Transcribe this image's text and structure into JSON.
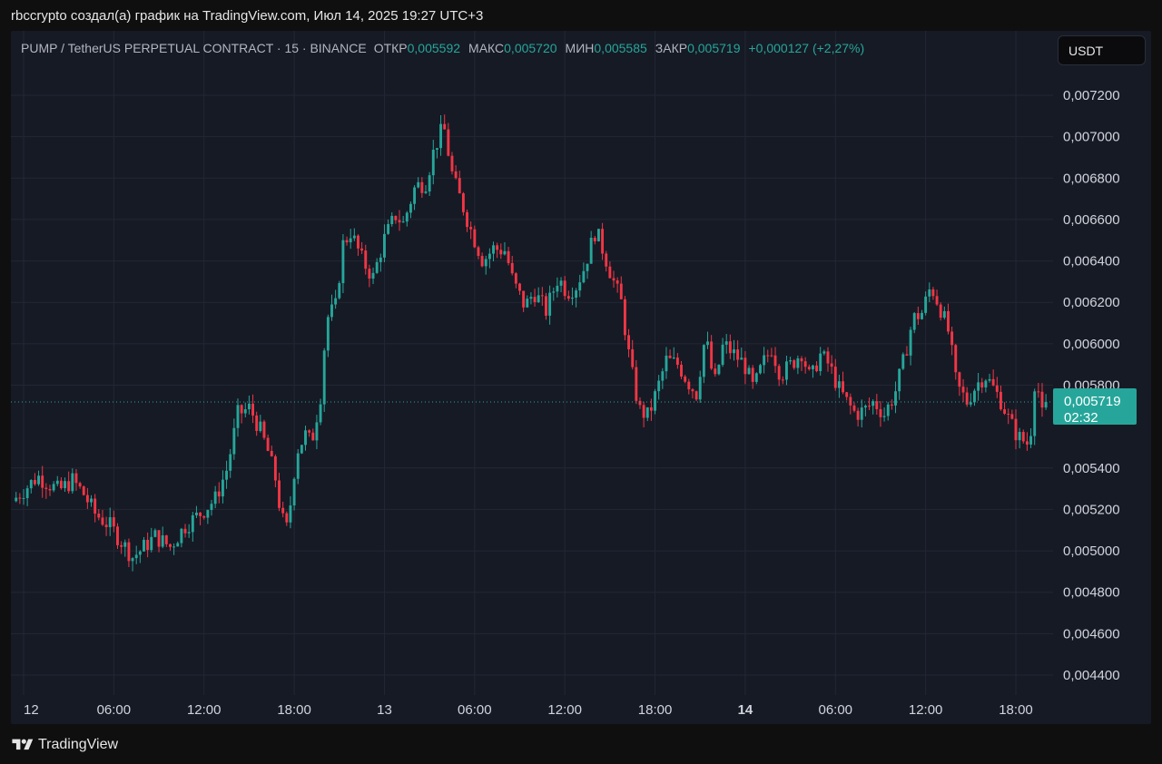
{
  "header": {
    "caption": "rbccrypto создал(а) график на TradingView.com, Июл 14, 2025 19:27 UTC+3"
  },
  "legend": {
    "symbol": "PUMP / TetherUS PERPETUAL CONTRACT · 15 · BINANCE",
    "open_label": "ОТКР",
    "open_value": "0,005592",
    "high_label": "МАКС",
    "high_value": "0,005720",
    "low_label": "МИН",
    "low_value": "0,005585",
    "close_label": "ЗАКР",
    "close_value": "0,005719",
    "change": "+0,000127 (+2,27%)"
  },
  "currency_button": {
    "label": "USDT"
  },
  "price_badge": {
    "price": "0,005719",
    "countdown": "02:32"
  },
  "footer": {
    "brand": "TradingView"
  },
  "colors": {
    "up": "#26a69a",
    "down": "#f23645",
    "background": "#161a25",
    "grid": "#232735",
    "badge": "#26a69a"
  },
  "chart_data": {
    "type": "candlestick",
    "interval": "15",
    "ylim": [
      0.0043,
      0.0073
    ],
    "y_ticks": [
      {
        "value": 0.0072,
        "label": "0,007200"
      },
      {
        "value": 0.007,
        "label": "0,007000"
      },
      {
        "value": 0.0068,
        "label": "0,006800"
      },
      {
        "value": 0.0066,
        "label": "0,006600"
      },
      {
        "value": 0.0064,
        "label": "0,006400"
      },
      {
        "value": 0.0062,
        "label": "0,006200"
      },
      {
        "value": 0.006,
        "label": "0,006000"
      },
      {
        "value": 0.0058,
        "label": "0,005800"
      },
      {
        "value": 0.0054,
        "label": "0,005400"
      },
      {
        "value": 0.0052,
        "label": "0,005200"
      },
      {
        "value": 0.005,
        "label": "0,005000"
      },
      {
        "value": 0.0048,
        "label": "0,004800"
      },
      {
        "value": 0.0046,
        "label": "0,004600"
      },
      {
        "value": 0.0044,
        "label": "0,004400"
      }
    ],
    "x_ticks": [
      {
        "hour": 0,
        "label": "12",
        "bold": false
      },
      {
        "hour": 6,
        "label": "06:00",
        "bold": false
      },
      {
        "hour": 12,
        "label": "12:00",
        "bold": false
      },
      {
        "hour": 18,
        "label": "18:00",
        "bold": false
      },
      {
        "hour": 24,
        "label": "13",
        "bold": false
      },
      {
        "hour": 30,
        "label": "06:00",
        "bold": false
      },
      {
        "hour": 36,
        "label": "12:00",
        "bold": false
      },
      {
        "hour": 42,
        "label": "18:00",
        "bold": false
      },
      {
        "hour": 48,
        "label": "14",
        "bold": true
      },
      {
        "hour": 54,
        "label": "06:00",
        "bold": false
      },
      {
        "hour": 60,
        "label": "12:00",
        "bold": false
      },
      {
        "hour": 66,
        "label": "18:00",
        "bold": false
      }
    ],
    "x_range_hours": [
      -0.5,
      69.3
    ],
    "last_price": 0.005719,
    "path_points": [
      [
        -0.5,
        0.00524
      ],
      [
        0.5,
        0.00531
      ],
      [
        1.2,
        0.00536
      ],
      [
        2.0,
        0.00532
      ],
      [
        2.6,
        0.00529
      ],
      [
        3.5,
        0.00534
      ],
      [
        4.2,
        0.00528
      ],
      [
        5.0,
        0.00518
      ],
      [
        6.0,
        0.00512
      ],
      [
        7.0,
        0.00502
      ],
      [
        7.5,
        0.00497
      ],
      [
        8.0,
        0.005
      ],
      [
        9.0,
        0.00507
      ],
      [
        10.0,
        0.00502
      ],
      [
        11.0,
        0.00512
      ],
      [
        12.0,
        0.00518
      ],
      [
        13.0,
        0.00525
      ],
      [
        13.8,
        0.0054
      ],
      [
        14.5,
        0.00566
      ],
      [
        15.3,
        0.00569
      ],
      [
        16.0,
        0.00558
      ],
      [
        16.5,
        0.00548
      ],
      [
        17.0,
        0.00535
      ],
      [
        17.4,
        0.00516
      ],
      [
        17.8,
        0.0051
      ],
      [
        18.4,
        0.00548
      ],
      [
        19.0,
        0.00556
      ],
      [
        19.4,
        0.00552
      ],
      [
        20.0,
        0.00575
      ],
      [
        20.4,
        0.00612
      ],
      [
        21.0,
        0.00618
      ],
      [
        21.5,
        0.00648
      ],
      [
        22.0,
        0.00654
      ],
      [
        22.8,
        0.0064
      ],
      [
        23.5,
        0.00632
      ],
      [
        24.2,
        0.0065
      ],
      [
        25.0,
        0.00662
      ],
      [
        25.5,
        0.00658
      ],
      [
        26.3,
        0.00676
      ],
      [
        27.0,
        0.00678
      ],
      [
        27.6,
        0.00695
      ],
      [
        28.2,
        0.00705
      ],
      [
        28.8,
        0.0068
      ],
      [
        29.4,
        0.00668
      ],
      [
        30.0,
        0.00655
      ],
      [
        30.8,
        0.0064
      ],
      [
        31.5,
        0.00646
      ],
      [
        32.3,
        0.00645
      ],
      [
        32.8,
        0.0063
      ],
      [
        33.6,
        0.00618
      ],
      [
        34.2,
        0.00625
      ],
      [
        35.0,
        0.00616
      ],
      [
        35.8,
        0.00632
      ],
      [
        36.4,
        0.00625
      ],
      [
        37.0,
        0.00628
      ],
      [
        37.5,
        0.00636
      ],
      [
        38.3,
        0.00655
      ],
      [
        38.8,
        0.00645
      ],
      [
        39.5,
        0.0063
      ],
      [
        40.0,
        0.0062
      ],
      [
        40.6,
        0.0059
      ],
      [
        41.2,
        0.00568
      ],
      [
        41.8,
        0.00565
      ],
      [
        42.4,
        0.00578
      ],
      [
        43.0,
        0.00592
      ],
      [
        43.8,
        0.0059
      ],
      [
        44.4,
        0.00582
      ],
      [
        45.0,
        0.00576
      ],
      [
        45.6,
        0.00604
      ],
      [
        46.2,
        0.0058
      ],
      [
        46.8,
        0.006
      ],
      [
        47.5,
        0.00595
      ],
      [
        48.2,
        0.0059
      ],
      [
        48.8,
        0.00578
      ],
      [
        49.4,
        0.0059
      ],
      [
        50.0,
        0.00598
      ],
      [
        50.6,
        0.00585
      ],
      [
        51.3,
        0.0059
      ],
      [
        52.0,
        0.00596
      ],
      [
        52.6,
        0.00582
      ],
      [
        53.2,
        0.00595
      ],
      [
        53.8,
        0.0059
      ],
      [
        54.5,
        0.00578
      ],
      [
        55.0,
        0.00572
      ],
      [
        55.6,
        0.00566
      ],
      [
        56.2,
        0.00568
      ],
      [
        56.8,
        0.00572
      ],
      [
        57.5,
        0.00566
      ],
      [
        58.2,
        0.00576
      ],
      [
        58.8,
        0.00592
      ],
      [
        59.4,
        0.00612
      ],
      [
        60.0,
        0.00615
      ],
      [
        60.6,
        0.00628
      ],
      [
        61.3,
        0.00616
      ],
      [
        61.8,
        0.00605
      ],
      [
        62.3,
        0.0058
      ],
      [
        63.0,
        0.00572
      ],
      [
        63.6,
        0.0058
      ],
      [
        64.2,
        0.00585
      ],
      [
        64.8,
        0.00578
      ],
      [
        65.3,
        0.00572
      ],
      [
        65.8,
        0.00563
      ],
      [
        66.4,
        0.00555
      ],
      [
        67.0,
        0.00552
      ],
      [
        67.3,
        0.0056
      ],
      [
        67.6,
        0.00592
      ],
      [
        67.9,
        0.00562
      ],
      [
        68.2,
        0.005719
      ]
    ]
  }
}
